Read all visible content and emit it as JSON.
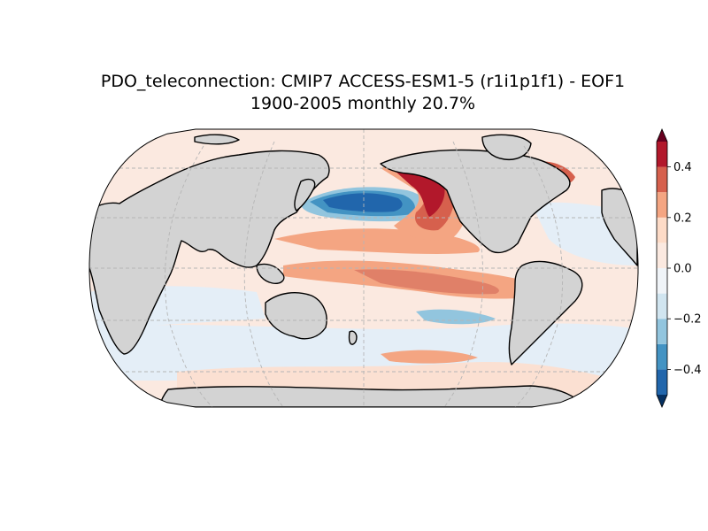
{
  "title": {
    "line1": "PDO_teleconnection: CMIP7 ACCESS-ESM1-5 (r1i1p1f1) - EOF1",
    "line2": "1900-2005 monthly 20.7%"
  },
  "map": {
    "projection": "Robinson",
    "central_longitude": 180,
    "gridlines": true,
    "land_color": "#d3d3d3",
    "coastline_color": "#000000"
  },
  "colorbar": {
    "orientation": "vertical",
    "placement": "right",
    "extend": "both",
    "range": [
      -0.5,
      0.5
    ],
    "levels": [
      -0.5,
      -0.4,
      -0.3,
      -0.2,
      -0.1,
      0.0,
      0.1,
      0.2,
      0.3,
      0.4,
      0.5
    ],
    "colors": [
      "#053061",
      "#2166ac",
      "#4393c3",
      "#92c5de",
      "#d1e5f0",
      "#f7f7f7",
      "#fddbc7",
      "#f4a582",
      "#d6604d",
      "#b2182b",
      "#67001f"
    ],
    "tick_values": [
      -0.4,
      -0.2,
      0.0,
      0.2,
      0.4
    ],
    "tick_labels": [
      "−0.4",
      "−0.2",
      "0.0",
      "0.2",
      "0.4"
    ]
  }
}
